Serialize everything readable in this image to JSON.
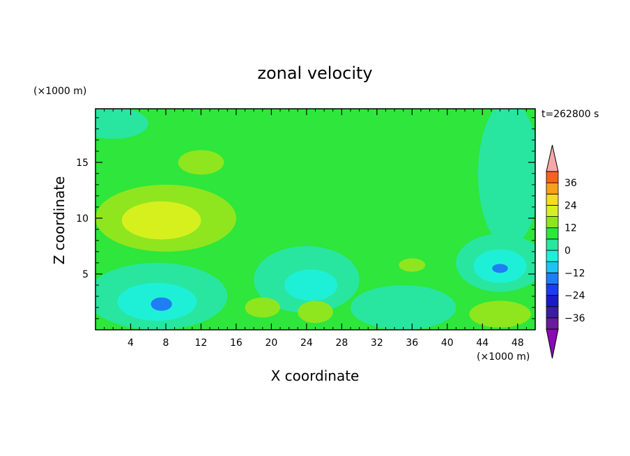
{
  "chart_data": {
    "type": "heatmap",
    "title": "zonal velocity",
    "xlabel": "X coordinate",
    "ylabel": "Z coordinate",
    "x_unit": "(×1000 m)",
    "y_unit": "(×1000 m)",
    "time_label": "t=262800 s",
    "xlim": [
      0,
      50
    ],
    "ylim": [
      0,
      19.8
    ],
    "x_ticks": [
      4,
      8,
      12,
      16,
      20,
      24,
      28,
      32,
      36,
      40,
      44,
      48
    ],
    "y_ticks": [
      5,
      10,
      15
    ],
    "colorbar": {
      "ticks": [
        36,
        24,
        12,
        0,
        -12,
        -24,
        -36
      ],
      "levels": [
        -42,
        -36,
        -30,
        -24,
        -18,
        -12,
        -6,
        0,
        6,
        12,
        18,
        24,
        30,
        36,
        42
      ],
      "colors": [
        "#6a1b9a",
        "#3a1ea0",
        "#1a1ac8",
        "#1a3df0",
        "#1e7ef5",
        "#1ec4f0",
        "#1ef0d8",
        "#28e6a0",
        "#2ee63c",
        "#8fe61e",
        "#d6f01e",
        "#f5dc1e",
        "#f5a01e",
        "#f5641e",
        "#f0281e"
      ],
      "over_color": "#f5a8a8",
      "under_color": "#8a0ab4"
    },
    "background_level_color": "#2ee63c",
    "features": [
      {
        "x": 2,
        "y": 18.5,
        "rx": 4,
        "ry": 1.4,
        "value": -3,
        "color": "#28e6a0"
      },
      {
        "x": 47,
        "y": 14,
        "rx": 3.5,
        "ry": 6.5,
        "value": -3,
        "color": "#28e6a0"
      },
      {
        "x": 8,
        "y": 10,
        "rx": 8,
        "ry": 3,
        "value": 6,
        "color": "#8fe61e"
      },
      {
        "x": 7.5,
        "y": 9.8,
        "rx": 4.5,
        "ry": 1.7,
        "value": 10,
        "color": "#d6f01e"
      },
      {
        "x": 12,
        "y": 15,
        "rx": 2.6,
        "ry": 1.1,
        "value": 6,
        "color": "#8fe61e"
      },
      {
        "x": 7,
        "y": 3,
        "rx": 8,
        "ry": 3,
        "value": -3,
        "color": "#28e6a0"
      },
      {
        "x": 7,
        "y": 2.5,
        "rx": 4.5,
        "ry": 1.7,
        "value": -9,
        "color": "#1ef0d8"
      },
      {
        "x": 7.5,
        "y": 2.3,
        "rx": 1.2,
        "ry": 0.6,
        "value": -18,
        "color": "#1e7ef5"
      },
      {
        "x": 24,
        "y": 4.5,
        "rx": 6,
        "ry": 3,
        "value": -3,
        "color": "#28e6a0"
      },
      {
        "x": 24.5,
        "y": 4,
        "rx": 3,
        "ry": 1.4,
        "value": -9,
        "color": "#1ef0d8"
      },
      {
        "x": 46,
        "y": 6,
        "rx": 5,
        "ry": 2.6,
        "value": -3,
        "color": "#28e6a0"
      },
      {
        "x": 46,
        "y": 5.7,
        "rx": 3,
        "ry": 1.5,
        "value": -9,
        "color": "#1ef0d8"
      },
      {
        "x": 46,
        "y": 5.5,
        "rx": 0.9,
        "ry": 0.4,
        "value": -18,
        "color": "#1e7ef5"
      },
      {
        "x": 46,
        "y": 1.4,
        "rx": 3.5,
        "ry": 1.2,
        "value": 6,
        "color": "#8fe61e"
      },
      {
        "x": 35,
        "y": 2,
        "rx": 6,
        "ry": 2,
        "value": -3,
        "color": "#28e6a0"
      },
      {
        "x": 36,
        "y": 5.8,
        "rx": 1.5,
        "ry": 0.6,
        "value": 6,
        "color": "#8fe61e"
      },
      {
        "x": 19,
        "y": 2,
        "rx": 2,
        "ry": 0.9,
        "value": 6,
        "color": "#8fe61e"
      },
      {
        "x": 25,
        "y": 1.6,
        "rx": 2,
        "ry": 1,
        "value": 6,
        "color": "#8fe61e"
      }
    ]
  }
}
